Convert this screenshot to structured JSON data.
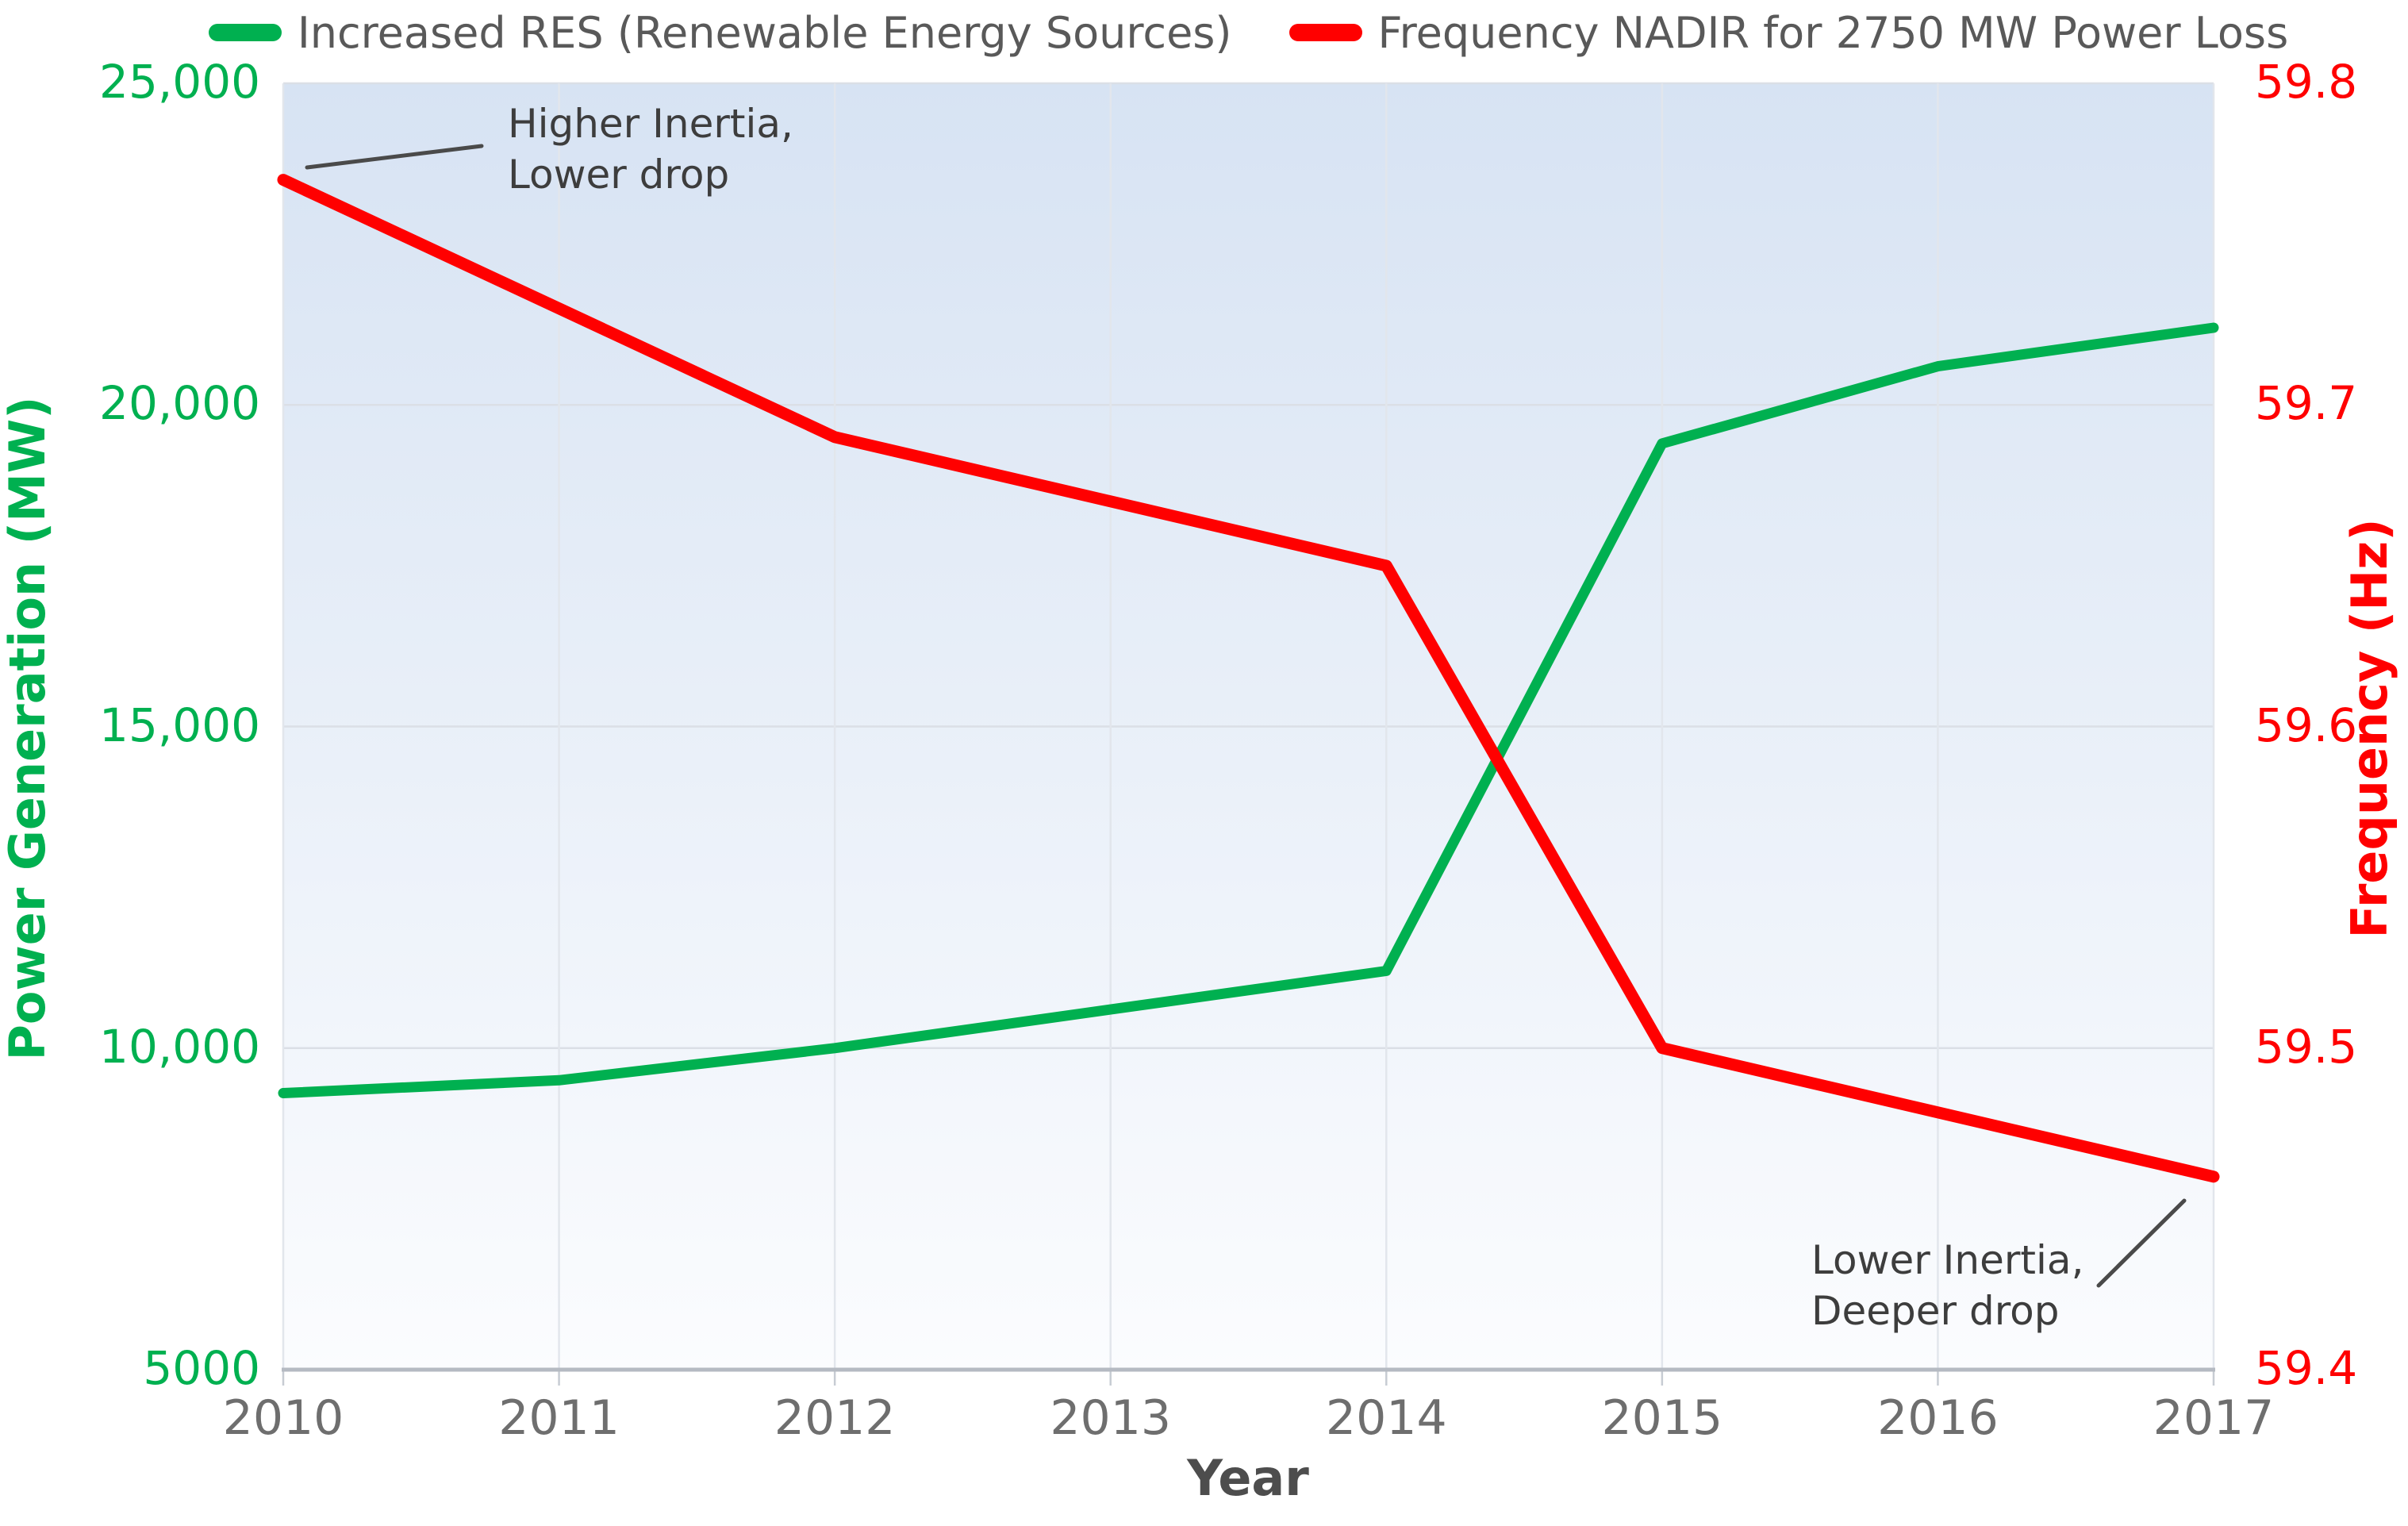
{
  "legend": {
    "items": [
      {
        "label": "Increased RES (Renewable Energy Sources)",
        "color": "#00b050"
      },
      {
        "label": "Frequency NADIR for 2750 MW Power Loss",
        "color": "#ff0000"
      }
    ]
  },
  "chart_data": {
    "type": "line",
    "x": [
      2010,
      2011,
      2012,
      2013,
      2014,
      2015,
      2016,
      2017
    ],
    "xlabel": "Year",
    "series": [
      {
        "name": "Increased RES (Renewable Energy Sources)",
        "axis": "left",
        "color": "#00b050",
        "line_width": 13,
        "values": [
          9300,
          9500,
          10000,
          10600,
          11200,
          19400,
          20600,
          21200
        ]
      },
      {
        "name": "Frequency NADIR for 2750 MW Power Loss",
        "axis": "right",
        "color": "#ff0000",
        "line_width": 15,
        "values": [
          59.77,
          59.73,
          59.69,
          59.67,
          59.65,
          59.5,
          59.48,
          59.46
        ]
      }
    ],
    "left_axis": {
      "label": "Power Generation (MW)",
      "color": "#00b050",
      "lim": [
        5000,
        25000
      ],
      "ticks": [
        {
          "value": 25000,
          "label": "25,000"
        },
        {
          "value": 20000,
          "label": "20,000"
        },
        {
          "value": 15000,
          "label": "15,000"
        },
        {
          "value": 10000,
          "label": "10,000"
        },
        {
          "value": 5000,
          "label": "5000"
        }
      ]
    },
    "right_axis": {
      "label": "Frequency (Hz)",
      "color": "#ff0000",
      "lim": [
        59.4,
        59.8
      ],
      "ticks": [
        {
          "value": 59.8,
          "label": "59.8"
        },
        {
          "value": 59.7,
          "label": "59.7"
        },
        {
          "value": 59.6,
          "label": "59.6"
        },
        {
          "value": 59.5,
          "label": "59.5"
        },
        {
          "value": 59.4,
          "label": "59.4"
        }
      ]
    },
    "x_axis": {
      "ticks": [
        "2010",
        "2011",
        "2012",
        "2013",
        "2014",
        "2015",
        "2016",
        "2017"
      ]
    },
    "annotations": [
      {
        "line1": "Higher Inertia,",
        "line2": "Lower drop"
      },
      {
        "line1": "Lower Inertia,",
        "line2": "Deeper drop"
      }
    ],
    "grid": true,
    "legend_position": "top center",
    "plot_background_gradient": [
      "#d7e3f3",
      "#fbfcfe"
    ]
  }
}
